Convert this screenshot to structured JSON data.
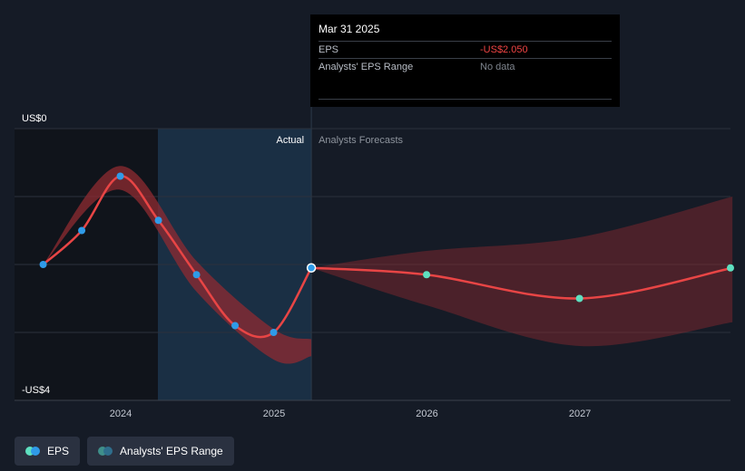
{
  "tooltip": {
    "date": "Mar 31 2025",
    "rows": [
      {
        "label": "EPS",
        "value": "-US$2.050"
      },
      {
        "label": "Analysts' EPS Range",
        "value": "No data"
      }
    ]
  },
  "labels": {
    "actual": "Actual",
    "forecast": "Analysts Forecasts"
  },
  "legend": {
    "eps": "EPS",
    "range": "Analysts' EPS Range"
  },
  "colors": {
    "background": "#151b26",
    "eps_line": "#e84545",
    "eps_actual_point": "#2f9be8",
    "eps_forecast_point": "#5ee0c0",
    "band": "#8f2b31",
    "past_highlight": "#1d3a54"
  },
  "chart_data": {
    "type": "line",
    "title": "",
    "xlabel": "",
    "ylabel": "",
    "x_ticks": [
      "2024",
      "2025",
      "2026",
      "2027"
    ],
    "y_ticks": [
      {
        "value": 0,
        "label": "US$0"
      },
      {
        "value": -4,
        "label": "-US$4"
      }
    ],
    "ylim": [
      -4,
      0
    ],
    "gridlines": [
      0,
      -1,
      -2,
      -3,
      -4
    ],
    "grid": true,
    "actual_until": "2025-03-31",
    "series": [
      {
        "name": "EPS",
        "actual": [
          {
            "x": "2023-06-30",
            "y": -2.0
          },
          {
            "x": "2023-09-30",
            "y": -1.5
          },
          {
            "x": "2023-12-31",
            "y": -0.7
          },
          {
            "x": "2024-03-31",
            "y": -1.35
          },
          {
            "x": "2024-06-30",
            "y": -2.15
          },
          {
            "x": "2024-09-30",
            "y": -2.9
          },
          {
            "x": "2024-12-31",
            "y": -3.0
          },
          {
            "x": "2025-03-31",
            "y": -2.05
          }
        ],
        "forecast": [
          {
            "x": "2025-03-31",
            "y": -2.05
          },
          {
            "x": "2025-12-31",
            "y": -2.15
          },
          {
            "x": "2026-12-31",
            "y": -2.5
          },
          {
            "x": "2027-12-31",
            "y": -2.05
          }
        ]
      }
    ],
    "eps_range": {
      "actual_high": [
        {
          "x": "2023-06-30",
          "y": -2.0
        },
        {
          "x": "2023-12-31",
          "y": -0.55
        },
        {
          "x": "2024-06-30",
          "y": -1.95
        },
        {
          "x": "2024-12-31",
          "y": -2.95
        },
        {
          "x": "2025-03-31",
          "y": -3.1
        }
      ],
      "actual_low": [
        {
          "x": "2023-06-30",
          "y": -2.0
        },
        {
          "x": "2023-12-31",
          "y": -0.9
        },
        {
          "x": "2024-06-30",
          "y": -2.4
        },
        {
          "x": "2024-12-31",
          "y": -3.4
        },
        {
          "x": "2025-03-31",
          "y": -3.35
        }
      ],
      "forecast_high": [
        {
          "x": "2025-03-31",
          "y": -2.05
        },
        {
          "x": "2025-12-31",
          "y": -1.8
        },
        {
          "x": "2026-12-31",
          "y": -1.6
        },
        {
          "x": "2027-12-31",
          "y": -1.0
        }
      ],
      "forecast_low": [
        {
          "x": "2025-03-31",
          "y": -2.05
        },
        {
          "x": "2025-12-31",
          "y": -2.6
        },
        {
          "x": "2026-12-31",
          "y": -3.2
        },
        {
          "x": "2027-12-31",
          "y": -2.85
        }
      ]
    }
  }
}
